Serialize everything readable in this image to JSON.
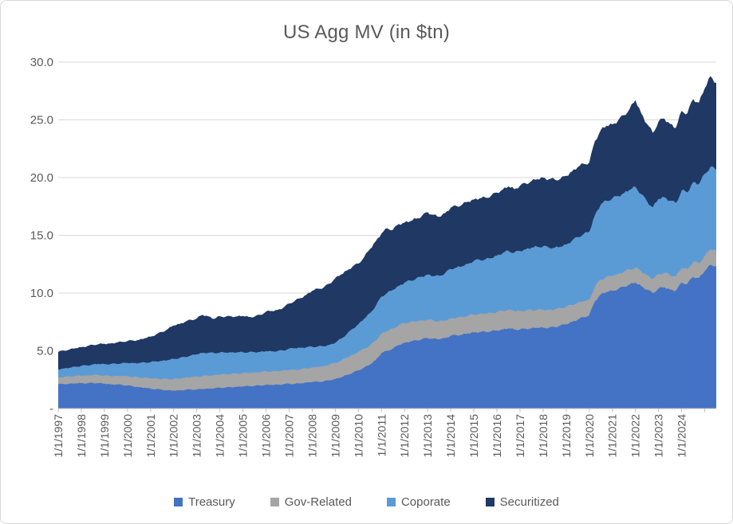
{
  "chart": {
    "title": "US Agg MV (in $tn)",
    "y_axis": {
      "tick_labels": [
        "30.0",
        "25.0",
        "20.0",
        "15.0",
        "10.0",
        "5.0",
        "-"
      ],
      "tick_values": [
        30,
        25,
        20,
        15,
        10,
        5,
        0
      ]
    },
    "x_axis": {
      "tick_labels": [
        "1/1/1997",
        "1/1/1998",
        "1/1/1999",
        "1/1/2000",
        "1/1/2001",
        "1/1/2002",
        "1/1/2003",
        "1/1/2004",
        "1/1/2005",
        "1/1/2006",
        "1/1/2007",
        "1/1/2008",
        "1/1/2009",
        "1/1/2010",
        "1/1/2011",
        "1/1/2012",
        "1/1/2013",
        "1/1/2014",
        "1/1/2015",
        "1/1/2016",
        "1/1/2017",
        "1/1/2018",
        "1/1/2019",
        "1/1/2020",
        "1/1/2021",
        "1/1/2022",
        "1/1/2023",
        "1/1/2024"
      ]
    },
    "legend": [
      {
        "label": "Treasury",
        "color": "#4472C4"
      },
      {
        "label": "Gov-Related",
        "color": "#A5A5A5"
      },
      {
        "label": "Coporate",
        "color": "#5B9BD5"
      },
      {
        "label": "Securitized",
        "color": "#1F3864"
      }
    ],
    "colors": {
      "grid": "#D9D9D9",
      "axis_line": "#BFBFBF",
      "tick": "#BFBFBF",
      "text": "#595959"
    }
  },
  "chart_data": {
    "type": "area",
    "stacked": true,
    "title": "US Agg MV (in $tn)",
    "xlabel": "",
    "ylabel": "",
    "ylim": [
      0,
      30
    ],
    "x_start_year": 1997.0,
    "x_end_year": 2025.5,
    "x_step_years": 0.25,
    "legend_position": "bottom",
    "grid": "horizontal",
    "series": [
      {
        "name": "Treasury",
        "color": "#4472C4",
        "values": [
          2.1,
          2.12,
          2.15,
          2.18,
          2.2,
          2.18,
          2.22,
          2.2,
          2.15,
          2.1,
          2.08,
          2.05,
          2.0,
          1.92,
          1.85,
          1.8,
          1.72,
          1.68,
          1.62,
          1.58,
          1.55,
          1.57,
          1.62,
          1.64,
          1.65,
          1.7,
          1.72,
          1.75,
          1.8,
          1.82,
          1.85,
          1.88,
          1.92,
          1.95,
          1.96,
          2.0,
          2.05,
          2.04,
          2.06,
          2.1,
          2.15,
          2.14,
          2.18,
          2.25,
          2.3,
          2.32,
          2.35,
          2.45,
          2.55,
          2.7,
          2.9,
          3.1,
          3.3,
          3.55,
          3.8,
          4.2,
          4.8,
          5.0,
          5.2,
          5.5,
          5.7,
          5.8,
          5.9,
          6.0,
          6.1,
          6.05,
          6.0,
          6.1,
          6.3,
          6.35,
          6.4,
          6.5,
          6.6,
          6.62,
          6.65,
          6.7,
          6.75,
          6.85,
          6.95,
          6.85,
          6.85,
          6.9,
          6.95,
          7.0,
          7.0,
          7.0,
          7.05,
          7.2,
          7.3,
          7.5,
          7.7,
          7.9,
          8.1,
          9.3,
          9.9,
          10.1,
          10.2,
          10.35,
          10.55,
          10.75,
          10.9,
          10.6,
          10.3,
          10.0,
          10.4,
          10.5,
          10.3,
          10.2,
          10.9,
          10.8,
          11.4,
          11.3,
          11.9,
          12.45,
          12.35
        ]
      },
      {
        "name": "Gov-Related",
        "color": "#A5A5A5",
        "values": [
          0.6,
          0.62,
          0.63,
          0.64,
          0.65,
          0.67,
          0.68,
          0.7,
          0.7,
          0.72,
          0.74,
          0.77,
          0.8,
          0.82,
          0.84,
          0.87,
          0.9,
          0.92,
          0.95,
          0.97,
          1.0,
          1.02,
          1.05,
          1.08,
          1.1,
          1.12,
          1.13,
          1.14,
          1.15,
          1.15,
          1.15,
          1.15,
          1.15,
          1.15,
          1.16,
          1.16,
          1.17,
          1.17,
          1.18,
          1.19,
          1.2,
          1.21,
          1.22,
          1.24,
          1.25,
          1.28,
          1.32,
          1.36,
          1.4,
          1.45,
          1.5,
          1.55,
          1.6,
          1.63,
          1.66,
          1.68,
          1.7,
          1.72,
          1.73,
          1.72,
          1.7,
          1.68,
          1.65,
          1.62,
          1.6,
          1.57,
          1.54,
          1.52,
          1.5,
          1.51,
          1.52,
          1.54,
          1.55,
          1.56,
          1.57,
          1.58,
          1.6,
          1.61,
          1.61,
          1.6,
          1.6,
          1.59,
          1.58,
          1.56,
          1.55,
          1.54,
          1.53,
          1.51,
          1.5,
          1.48,
          1.45,
          1.4,
          1.3,
          1.28,
          1.28,
          1.29,
          1.3,
          1.3,
          1.3,
          1.3,
          1.3,
          1.28,
          1.25,
          1.22,
          1.25,
          1.26,
          1.25,
          1.24,
          1.28,
          1.27,
          1.3,
          1.29,
          1.32,
          1.34,
          1.35
        ]
      },
      {
        "name": "Coporate",
        "color": "#5B9BD5",
        "values": [
          0.7,
          0.73,
          0.76,
          0.8,
          0.85,
          0.88,
          0.92,
          0.96,
          1.0,
          1.03,
          1.06,
          1.1,
          1.15,
          1.2,
          1.25,
          1.32,
          1.4,
          1.48,
          1.56,
          1.65,
          1.75,
          1.78,
          1.8,
          1.88,
          1.95,
          2.0,
          1.98,
          1.92,
          1.9,
          1.88,
          1.86,
          1.84,
          1.8,
          1.78,
          1.76,
          1.75,
          1.75,
          1.74,
          1.74,
          1.74,
          1.85,
          1.88,
          1.86,
          1.82,
          1.8,
          1.78,
          1.72,
          1.7,
          1.75,
          1.9,
          2.05,
          2.25,
          2.4,
          2.6,
          2.8,
          3.0,
          3.2,
          3.3,
          3.35,
          3.4,
          3.5,
          3.6,
          3.7,
          3.8,
          3.9,
          3.85,
          3.95,
          4.1,
          4.3,
          4.35,
          4.4,
          4.5,
          4.65,
          4.7,
          4.7,
          4.75,
          4.9,
          5.0,
          5.1,
          5.05,
          5.2,
          5.3,
          5.4,
          5.45,
          5.5,
          5.4,
          5.35,
          5.3,
          5.4,
          5.55,
          5.7,
          5.8,
          5.9,
          6.2,
          6.5,
          6.6,
          6.7,
          6.75,
          6.8,
          6.9,
          7.0,
          6.7,
          6.4,
          6.2,
          6.5,
          6.55,
          6.45,
          6.35,
          6.7,
          6.65,
          6.9,
          6.85,
          7.1,
          7.15,
          6.95
        ]
      },
      {
        "name": "Securitized",
        "color": "#1F3864",
        "values": [
          1.5,
          1.55,
          1.58,
          1.6,
          1.62,
          1.66,
          1.7,
          1.72,
          1.75,
          1.78,
          1.82,
          1.86,
          1.9,
          1.95,
          2.0,
          2.1,
          2.2,
          2.35,
          2.5,
          2.7,
          2.9,
          2.95,
          3.05,
          3.08,
          3.1,
          3.3,
          3.15,
          2.95,
          3.15,
          3.1,
          3.12,
          3.1,
          3.15,
          3.05,
          3.08,
          3.2,
          3.43,
          3.5,
          3.55,
          3.7,
          3.9,
          4.1,
          4.3,
          4.55,
          4.85,
          5.0,
          5.1,
          5.3,
          5.6,
          5.55,
          5.5,
          5.4,
          5.25,
          5.35,
          5.55,
          5.6,
          5.45,
          5.6,
          5.2,
          5.35,
          5.2,
          5.15,
          5.2,
          5.25,
          5.4,
          5.3,
          5.1,
          5.2,
          5.3,
          5.32,
          5.35,
          5.38,
          5.3,
          5.32,
          5.35,
          5.4,
          5.45,
          5.5,
          5.58,
          5.5,
          5.65,
          5.7,
          5.78,
          5.85,
          5.95,
          5.9,
          5.92,
          5.88,
          5.95,
          6.0,
          6.05,
          6.1,
          6.0,
          6.4,
          6.45,
          6.5,
          6.4,
          6.55,
          6.75,
          7.0,
          7.5,
          7.0,
          6.7,
          6.45,
          6.7,
          6.8,
          6.65,
          6.5,
          6.9,
          6.85,
          7.2,
          7.05,
          7.4,
          7.85,
          7.55
        ]
      }
    ]
  }
}
